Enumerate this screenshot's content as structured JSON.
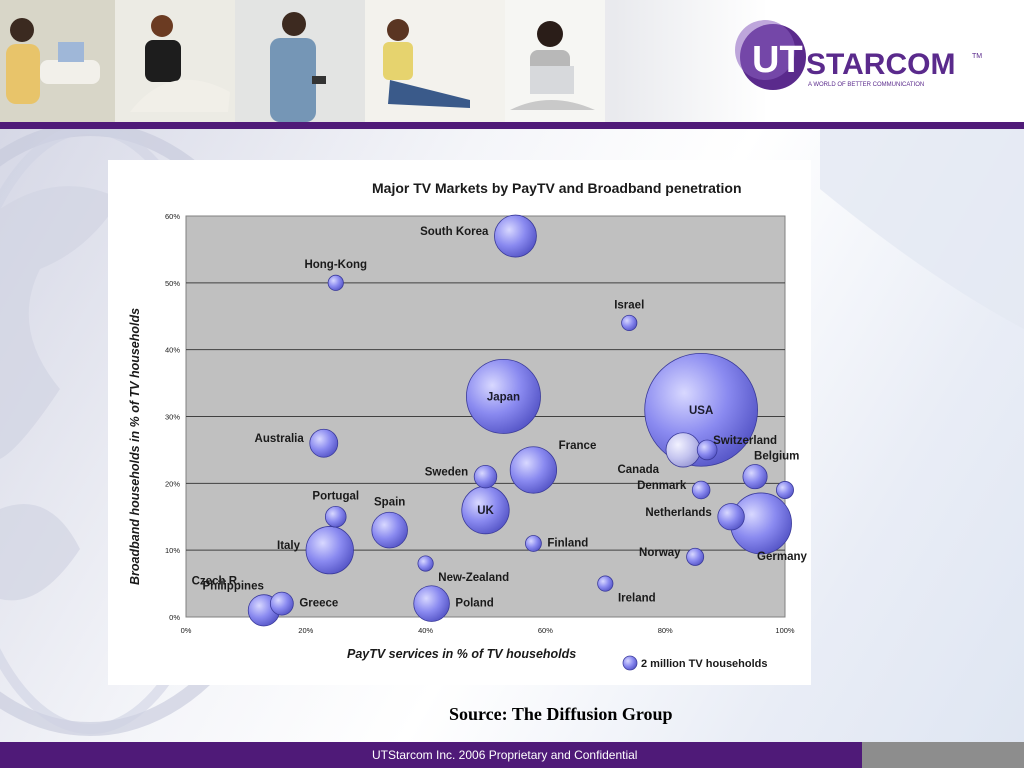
{
  "header": {
    "logo": {
      "wordmark_ut": "UT",
      "wordmark_starcom": "STARCOM",
      "tm": "TM",
      "tagline": "A WORLD OF BETTER COMMUNICATION"
    },
    "photo_strip": [
      "person-with-laptop",
      "woman-on-chair",
      "man-with-phone",
      "woman-with-phone",
      "woman-with-laptop"
    ]
  },
  "colors": {
    "brand_purple": "#4f1a78",
    "plot_bg": "#c0c0c0",
    "bubble_fill": "#7b7bea",
    "bubble_highlight": "#ccccff",
    "footer_gray": "#8d8d8d"
  },
  "chart_data": {
    "type": "scatter",
    "subtype": "bubble",
    "title": "Major TV Markets by PayTV and Broadband penetration",
    "xlabel": "PayTV services in % of TV households",
    "ylabel": "Broadband households in % of TV households",
    "xlim": [
      0,
      100
    ],
    "ylim": [
      0,
      60
    ],
    "xticks": [
      "0%",
      "20%",
      "40%",
      "60%",
      "80%",
      "100%"
    ],
    "yticks": [
      "0%",
      "10%",
      "20%",
      "30%",
      "40%",
      "50%",
      "60%"
    ],
    "grid": "horizontal",
    "legend": {
      "label": "2 million TV households",
      "placement": "bottom-right"
    },
    "points": [
      {
        "label": "South Korea",
        "x": 55,
        "y": 57,
        "size": 9,
        "label_pos": "left"
      },
      {
        "label": "Hong-Kong",
        "x": 25,
        "y": 50,
        "size": 1.2,
        "label_pos": "above"
      },
      {
        "label": "Israel",
        "x": 74,
        "y": 44,
        "size": 1.2,
        "label_pos": "above"
      },
      {
        "label": "Japan",
        "x": 53,
        "y": 33,
        "size": 28,
        "label_pos": "inside"
      },
      {
        "label": "USA",
        "x": 86,
        "y": 31,
        "size": 65,
        "label_pos": "inside"
      },
      {
        "label": "Australia",
        "x": 23,
        "y": 26,
        "size": 4,
        "label_pos": "left"
      },
      {
        "label": "Switzerland",
        "x": 87,
        "y": 25,
        "size": 2,
        "label_pos": "right"
      },
      {
        "label": "Canada",
        "x": 83,
        "y": 25,
        "size": 6,
        "label_pos": "below-left"
      },
      {
        "label": "France",
        "x": 58,
        "y": 22,
        "size": 11,
        "label_pos": "above-right"
      },
      {
        "label": "Sweden",
        "x": 50,
        "y": 21,
        "size": 2.6,
        "label_pos": "left"
      },
      {
        "label": "Belgium",
        "x": 95,
        "y": 21,
        "size": 3,
        "label_pos": "above-right"
      },
      {
        "label": "Denmark",
        "x": 86,
        "y": 19,
        "size": 1.6,
        "label_pos": "left"
      },
      {
        "label": "Portugal",
        "x": 25,
        "y": 15,
        "size": 2.2,
        "label_pos": "above"
      },
      {
        "label": "UK",
        "x": 50,
        "y": 16,
        "size": 11.5,
        "label_pos": "inside"
      },
      {
        "label": "Spain",
        "x": 34,
        "y": 13,
        "size": 6.5,
        "label_pos": "above"
      },
      {
        "label": "Netherlands",
        "x": 91,
        "y": 15,
        "size": 3.6,
        "label_pos": "left"
      },
      {
        "label": "Germany",
        "x": 96,
        "y": 14,
        "size": 19,
        "label_pos": "below"
      },
      {
        "label": "Finland",
        "x": 58,
        "y": 11,
        "size": 1.3,
        "label_pos": "right"
      },
      {
        "label": "Italy",
        "x": 24,
        "y": 10,
        "size": 11.5,
        "label_pos": "left"
      },
      {
        "label": "Norway",
        "x": 85,
        "y": 9,
        "size": 1.5,
        "label_pos": "left"
      },
      {
        "label": "New-Zealand",
        "x": 40,
        "y": 8,
        "size": 1.2,
        "label_pos": "below-right"
      },
      {
        "label": "Ireland",
        "x": 70,
        "y": 5,
        "size": 1.2,
        "label_pos": "below-right"
      },
      {
        "label": "Czech R.",
        "x": 13,
        "y": 1,
        "size": 5,
        "label_pos": "above-left"
      },
      {
        "label": "Philippines",
        "x": 13,
        "y": 1,
        "size": 0,
        "label_pos": "left-stack"
      },
      {
        "label": "Greece",
        "x": 16,
        "y": 2,
        "size": 2.7,
        "label_pos": "right"
      },
      {
        "label": "Poland",
        "x": 41,
        "y": 2,
        "size": 6.5,
        "label_pos": "right"
      },
      {
        "label": "",
        "x": 100,
        "y": 19,
        "size": 1.5,
        "label_pos": "none"
      }
    ]
  },
  "source": "Source: The Diffusion Group",
  "footer": {
    "text": "UTStarcom Inc. 2006 Proprietary and Confidential"
  }
}
